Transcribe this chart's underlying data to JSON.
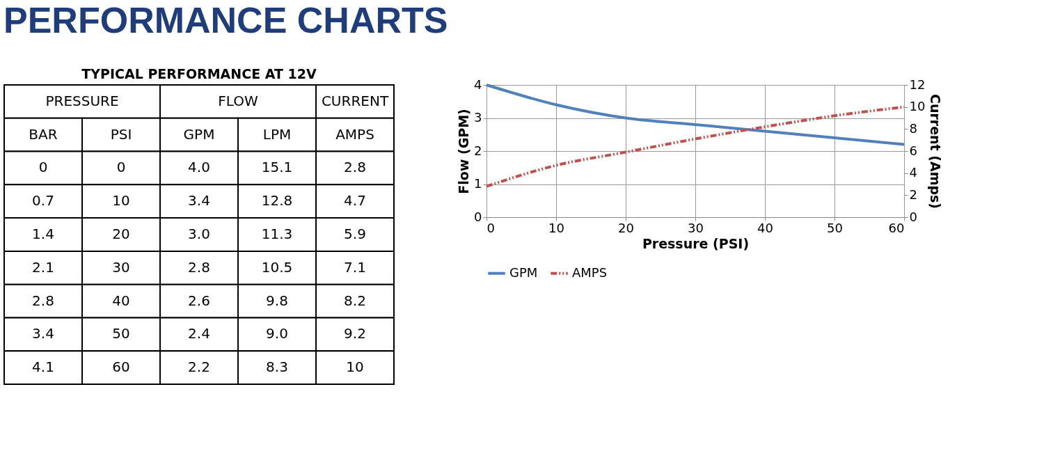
{
  "chart_data": [
    {
      "type": "other",
      "title": "PERFORMANCE CHARTS",
      "subtitle": "TYPICAL PERFORMANCE AT 12V",
      "annotations": [
        "PRESSURE",
        "FLOW",
        "CURRENT"
      ],
      "categories": [
        "BAR",
        "PSI",
        "GPM",
        "LPM",
        "AMPS"
      ],
      "cell_labels": [
        [
          "0",
          "0",
          "4.0",
          "15.1",
          "2.8"
        ],
        [
          "0.7",
          "10",
          "3.4",
          "12.8",
          "4.7"
        ],
        [
          "1.4",
          "20",
          "3.0",
          "11.3",
          "5.9"
        ],
        [
          "2.1",
          "30",
          "2.8",
          "10.5",
          "7.1"
        ],
        [
          "2.8",
          "40",
          "2.6",
          "9.8",
          "8.2"
        ],
        [
          "3.4",
          "50",
          "2.4",
          "9.0",
          "9.2"
        ],
        [
          "4.1",
          "60",
          "2.2",
          "8.3",
          "10"
        ]
      ]
    },
    {
      "type": "line",
      "xlabel": "Pressure (PSI)",
      "ylabel": "Flow (GPM)",
      "y2label": "Current (Amps)",
      "x": [
        0,
        10,
        20,
        30,
        40,
        50,
        60
      ],
      "xlim": [
        0,
        60
      ],
      "xticks": [
        0,
        10,
        20,
        30,
        40,
        50,
        60
      ],
      "ylim": [
        0,
        4
      ],
      "yticks": [
        0,
        1,
        2,
        3,
        4
      ],
      "y2lim": [
        0,
        12
      ],
      "y2ticks": [
        0,
        2,
        4,
        6,
        8,
        10,
        12
      ],
      "grid": true,
      "legend": "bottom",
      "marker": "none",
      "series": [
        {
          "name": "GPM",
          "color": "#4f81bd",
          "line_style": "solid",
          "values": [
            4.0,
            3.4,
            3.0,
            2.8,
            2.6,
            2.4,
            2.2
          ]
        },
        {
          "name": "AMPS",
          "color": "#c0504d",
          "line_style": "dashed",
          "axis": "y2",
          "values": [
            2.8,
            4.7,
            5.9,
            7.1,
            8.2,
            9.2,
            10
          ]
        }
      ]
    }
  ]
}
